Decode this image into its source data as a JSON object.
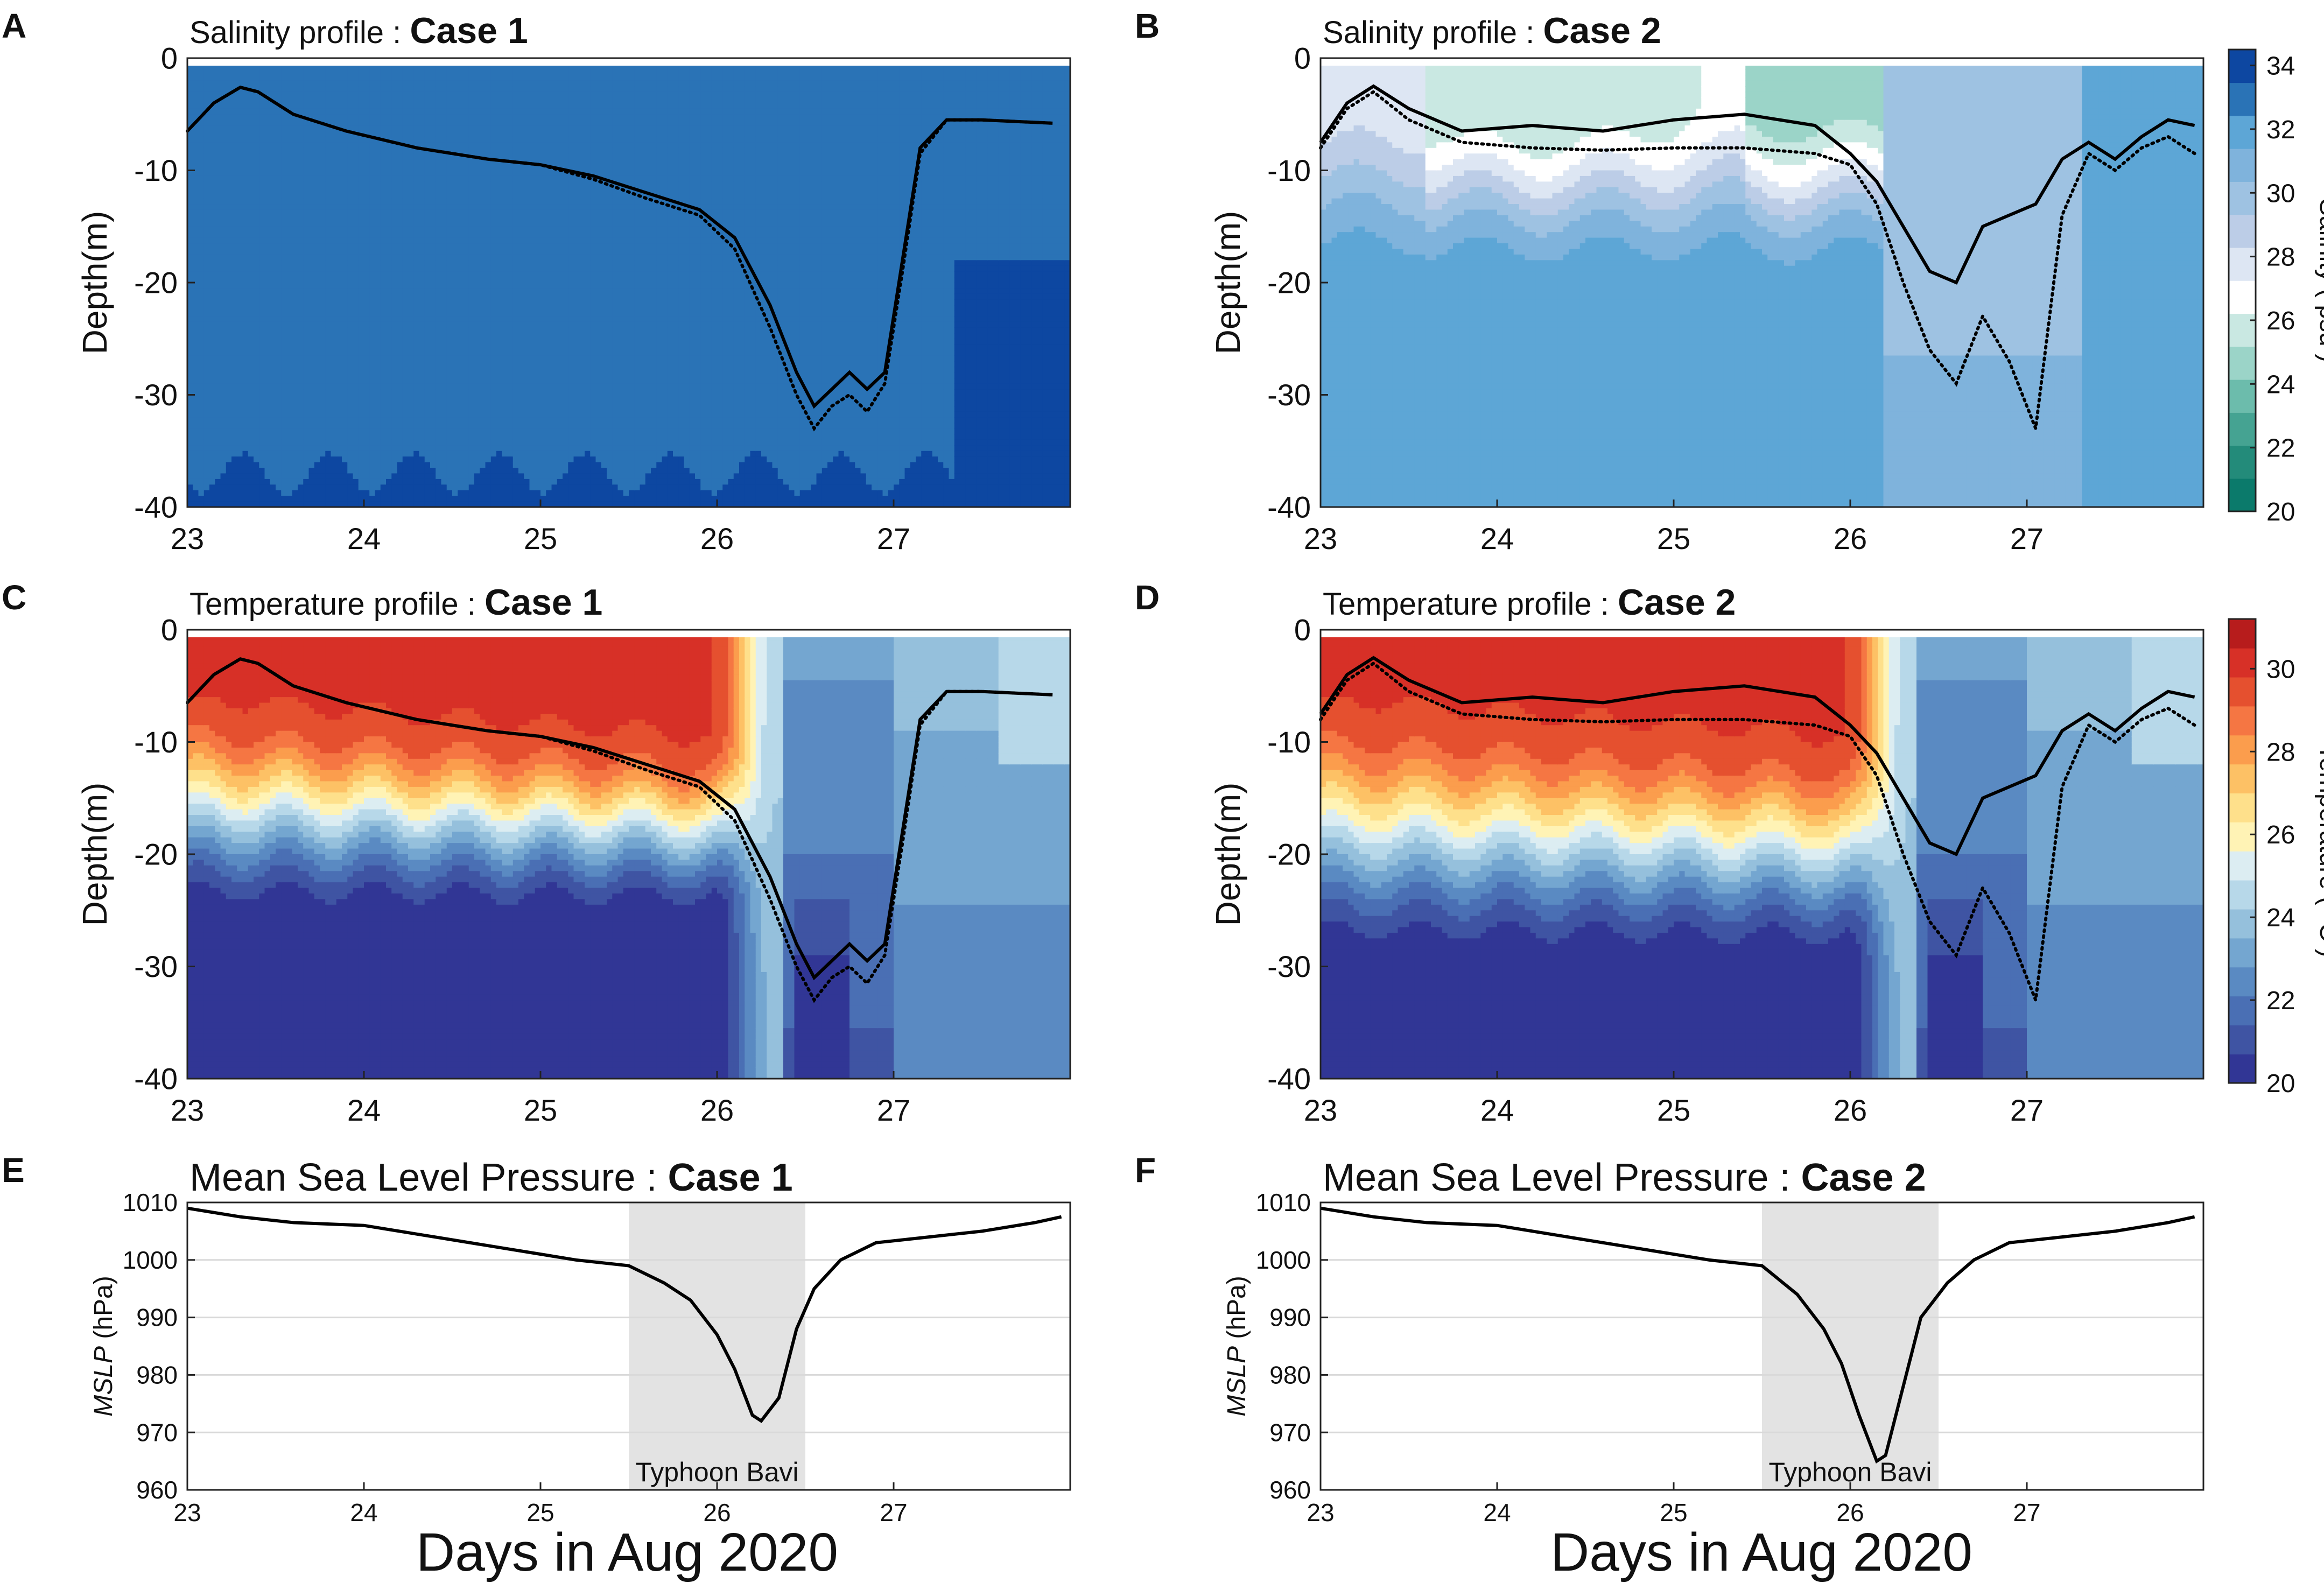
{
  "figure": {
    "x_axis_title": "Days in Aug 2020",
    "colors": {
      "sal": [
        "#0b7a6b",
        "#238b7a",
        "#45a392",
        "#6cbcac",
        "#9bd4c8",
        "#c9e8e2",
        "#ffffff",
        "#dde6f3",
        "#bccde7",
        "#9ec2e2",
        "#7fb3dc",
        "#5da6d6",
        "#2a73b6",
        "#0d47a1"
      ],
      "temp": [
        "#313695",
        "#3f54a3",
        "#4a6fb4",
        "#5a8ac2",
        "#74a6d0",
        "#95c0dc",
        "#b7d8e9",
        "#dcedf2",
        "#fff3b5",
        "#fee08b",
        "#fdc165",
        "#fb9d4d",
        "#f57643",
        "#e5502f",
        "#d73027",
        "#b71c1c"
      ],
      "mslp_shade": "#e3e3e3"
    },
    "salinity_colorbar": {
      "label": "Salinity ( psu )",
      "ticks": [
        "34",
        "32",
        "30",
        "28",
        "26",
        "24",
        "22",
        "20"
      ]
    },
    "temperature_colorbar": {
      "label": "Temperature ( °C )",
      "ticks": [
        "30",
        "28",
        "26",
        "24",
        "22",
        "20"
      ]
    }
  },
  "chart_data": [
    {
      "panel": "A",
      "type": "heatmap",
      "title_prefix": "Salinity profile : ",
      "title_case": "Case 1",
      "variable": "salinity",
      "ylabel": "Depth(m)",
      "xlim": [
        23,
        28
      ],
      "ylim": [
        -40,
        0
      ],
      "xticks": [
        "23",
        "24",
        "25",
        "26",
        "27"
      ],
      "yticks": [
        "0",
        "-10",
        "-20",
        "-30",
        "-40"
      ],
      "field_description": "nearly uniform ~32.5 psu, ~33.5 psu bumps at -40 m and ~34 psu after day 27.4 below -20 m",
      "line_solid": {
        "x": [
          23,
          23.15,
          23.3,
          23.4,
          23.6,
          23.9,
          24.3,
          24.7,
          25,
          25.3,
          25.6,
          25.9,
          26.1,
          26.3,
          26.45,
          26.55,
          26.65,
          26.75,
          26.85,
          26.95,
          27.05,
          27.15,
          27.3,
          27.5,
          27.9
        ],
        "y": [
          -6.5,
          -4,
          -2.6,
          -3,
          -5,
          -6.5,
          -8,
          -9,
          -9.5,
          -10.5,
          -12,
          -13.5,
          -16,
          -22,
          -28,
          -31,
          -29.5,
          -28,
          -29.5,
          -28,
          -18,
          -8,
          -5.5,
          -5.5,
          -5.8
        ]
      },
      "line_dotted": {
        "x": [
          23,
          23.15,
          23.3,
          23.4,
          23.6,
          23.9,
          24.3,
          24.7,
          25,
          25.3,
          25.6,
          25.9,
          26.1,
          26.3,
          26.45,
          26.55,
          26.65,
          26.75,
          26.85,
          26.95,
          27.05,
          27.15,
          27.3,
          27.5,
          27.9
        ],
        "y": [
          -6.5,
          -4,
          -2.6,
          -3,
          -5,
          -6.5,
          -8,
          -9,
          -9.5,
          -10.8,
          -12.5,
          -14,
          -17,
          -24,
          -30,
          -33,
          -31,
          -30,
          -31.5,
          -29,
          -19,
          -8.5,
          -5.5,
          -5.5,
          -5.8
        ]
      }
    },
    {
      "panel": "B",
      "type": "heatmap",
      "title_prefix": "Salinity profile : ",
      "title_case": "Case 2",
      "variable": "salinity",
      "ylabel": "Depth(m)",
      "xlim": [
        23,
        28
      ],
      "ylim": [
        -40,
        0
      ],
      "xticks": [
        "23",
        "24",
        "25",
        "26",
        "27"
      ],
      "yticks": [
        "0",
        "-10",
        "-20",
        "-30",
        "-40"
      ],
      "field_description": "fresher surface water (24-28 psu) above ~-15 m before day 26.2, ~31 psu below, 29-30 psu mixed column near day 26.3-26.8, ~31.5 psu after day 27.3",
      "line_solid": {
        "x": [
          23,
          23.15,
          23.3,
          23.5,
          23.8,
          24.2,
          24.6,
          25,
          25.4,
          25.8,
          26,
          26.15,
          26.3,
          26.45,
          26.6,
          26.75,
          26.9,
          27.05,
          27.2,
          27.35,
          27.5,
          27.65,
          27.8,
          27.95
        ],
        "y": [
          -7.5,
          -4,
          -2.5,
          -4.5,
          -6.5,
          -6,
          -6.5,
          -5.5,
          -5,
          -6,
          -8.5,
          -11,
          -15,
          -19,
          -20,
          -15,
          -14,
          -13,
          -9,
          -7.5,
          -9,
          -7,
          -5.5,
          -6
        ]
      },
      "line_dotted": {
        "x": [
          23,
          23.15,
          23.3,
          23.5,
          23.8,
          24.2,
          24.6,
          25,
          25.4,
          25.8,
          26,
          26.15,
          26.3,
          26.45,
          26.6,
          26.75,
          26.9,
          27.05,
          27.2,
          27.35,
          27.5,
          27.65,
          27.8,
          27.95
        ],
        "y": [
          -8,
          -4.5,
          -3,
          -5.5,
          -7.5,
          -8,
          -8.2,
          -8,
          -8,
          -8.5,
          -9.5,
          -13,
          -20,
          -26,
          -29,
          -23,
          -27,
          -33,
          -14,
          -8.5,
          -10,
          -8,
          -7,
          -8.5
        ]
      }
    },
    {
      "panel": "C",
      "type": "heatmap",
      "title_prefix": "Temperature profile : ",
      "title_case": "Case 1",
      "variable": "temperature",
      "ylabel": "Depth(m)",
      "xlim": [
        23,
        28
      ],
      "ylim": [
        -40,
        0
      ],
      "xticks": [
        "23",
        "24",
        "25",
        "26",
        "27"
      ],
      "yticks": [
        "0",
        "-10",
        "-20",
        "-30",
        "-40"
      ],
      "field_description": "warm mixed layer ~29.5 °C at surface, thermocline 14-26 m cooling to 20 °C, sharp front near day 26.3, cool 21-23 °C water after",
      "line_solid": {
        "x": [
          23,
          23.15,
          23.3,
          23.4,
          23.6,
          23.9,
          24.3,
          24.7,
          25,
          25.3,
          25.6,
          25.9,
          26.1,
          26.3,
          26.45,
          26.55,
          26.65,
          26.75,
          26.85,
          26.95,
          27.05,
          27.15,
          27.3,
          27.5,
          27.9
        ],
        "y": [
          -6.5,
          -4,
          -2.6,
          -3,
          -5,
          -6.5,
          -8,
          -9,
          -9.5,
          -10.5,
          -12,
          -13.5,
          -16,
          -22,
          -28,
          -31,
          -29.5,
          -28,
          -29.5,
          -28,
          -18,
          -8,
          -5.5,
          -5.5,
          -5.8
        ]
      },
      "line_dotted": {
        "x": [
          23,
          23.15,
          23.3,
          23.4,
          23.6,
          23.9,
          24.3,
          24.7,
          25,
          25.3,
          25.6,
          25.9,
          26.1,
          26.3,
          26.45,
          26.55,
          26.65,
          26.75,
          26.85,
          26.95,
          27.05,
          27.15,
          27.3,
          27.5,
          27.9
        ],
        "y": [
          -6.5,
          -4,
          -2.6,
          -3,
          -5,
          -6.5,
          -8,
          -9,
          -9.5,
          -10.8,
          -12.5,
          -14,
          -17,
          -24,
          -30,
          -33,
          -31,
          -30,
          -31.5,
          -29,
          -19,
          -8.5,
          -5.5,
          -5.5,
          -5.8
        ]
      }
    },
    {
      "panel": "D",
      "type": "heatmap",
      "title_prefix": "Temperature profile : ",
      "title_case": "Case 2",
      "variable": "temperature",
      "ylabel": "Depth(m)",
      "xlim": [
        23,
        28
      ],
      "ylim": [
        -40,
        0
      ],
      "xticks": [
        "23",
        "24",
        "25",
        "26",
        "27"
      ],
      "yticks": [
        "0",
        "-10",
        "-20",
        "-30",
        "-40"
      ],
      "field_description": "same structure as panel C with thermocline bottom near 30-32 m and front at day 26.3",
      "line_solid": {
        "x": [
          23,
          23.15,
          23.3,
          23.5,
          23.8,
          24.2,
          24.6,
          25,
          25.4,
          25.8,
          26,
          26.15,
          26.3,
          26.45,
          26.6,
          26.75,
          26.9,
          27.05,
          27.2,
          27.35,
          27.5,
          27.65,
          27.8,
          27.95
        ],
        "y": [
          -7.5,
          -4,
          -2.5,
          -4.5,
          -6.5,
          -6,
          -6.5,
          -5.5,
          -5,
          -6,
          -8.5,
          -11,
          -15,
          -19,
          -20,
          -15,
          -14,
          -13,
          -9,
          -7.5,
          -9,
          -7,
          -5.5,
          -6
        ]
      },
      "line_dotted": {
        "x": [
          23,
          23.15,
          23.3,
          23.5,
          23.8,
          24.2,
          24.6,
          25,
          25.4,
          25.8,
          26,
          26.15,
          26.3,
          26.45,
          26.6,
          26.75,
          26.9,
          27.05,
          27.2,
          27.35,
          27.5,
          27.65,
          27.8,
          27.95
        ],
        "y": [
          -8,
          -4.5,
          -3,
          -5.5,
          -7.5,
          -8,
          -8.2,
          -8,
          -8,
          -8.5,
          -9.5,
          -13,
          -20,
          -26,
          -29,
          -23,
          -27,
          -33,
          -14,
          -8.5,
          -10,
          -8,
          -7,
          -8.5
        ]
      }
    },
    {
      "panel": "E",
      "type": "line",
      "title_prefix": "Mean Sea Level Pressure : ",
      "title_case": "Case 1",
      "ylabel_italic": "MSLP",
      "ylabel_rest": " (hPa)",
      "xlim": [
        23,
        28
      ],
      "ylim": [
        960,
        1010
      ],
      "xticks": [
        "23",
        "24",
        "25",
        "26",
        "27"
      ],
      "yticks": [
        "1010",
        "1000",
        "990",
        "980",
        "970",
        "960"
      ],
      "shade": [
        25.5,
        26.5
      ],
      "annotation": "Typhoon Bavi",
      "x": [
        23,
        23.3,
        23.6,
        24,
        24.4,
        24.8,
        25.2,
        25.5,
        25.7,
        25.85,
        26,
        26.1,
        26.2,
        26.25,
        26.35,
        26.45,
        26.55,
        26.7,
        26.9,
        27.2,
        27.5,
        27.8,
        27.95
      ],
      "y": [
        1009,
        1007.5,
        1006.5,
        1006,
        1004,
        1002,
        1000,
        999,
        996,
        993,
        987,
        981,
        973,
        972,
        976,
        988,
        995,
        1000,
        1003,
        1004,
        1005,
        1006.5,
        1007.5
      ]
    },
    {
      "panel": "F",
      "type": "line",
      "title_prefix": "Mean Sea Level Pressure : ",
      "title_case": "Case 2",
      "ylabel_italic": "MSLP",
      "ylabel_rest": " (hPa)",
      "xlim": [
        23,
        28
      ],
      "ylim": [
        960,
        1010
      ],
      "xticks": [
        "23",
        "24",
        "25",
        "26",
        "27"
      ],
      "yticks": [
        "1010",
        "1000",
        "990",
        "980",
        "970",
        "960"
      ],
      "shade": [
        25.5,
        26.5
      ],
      "annotation": "Typhoon Bavi",
      "x": [
        23,
        23.3,
        23.6,
        24,
        24.4,
        24.8,
        25.2,
        25.5,
        25.7,
        25.85,
        25.95,
        26.05,
        26.15,
        26.2,
        26.3,
        26.4,
        26.55,
        26.7,
        26.9,
        27.2,
        27.5,
        27.8,
        27.95
      ],
      "y": [
        1009,
        1007.5,
        1006.5,
        1006,
        1004,
        1002,
        1000,
        999,
        994,
        988,
        982,
        973,
        965,
        966,
        978,
        990,
        996,
        1000,
        1003,
        1004,
        1005,
        1006.5,
        1007.5
      ]
    }
  ]
}
